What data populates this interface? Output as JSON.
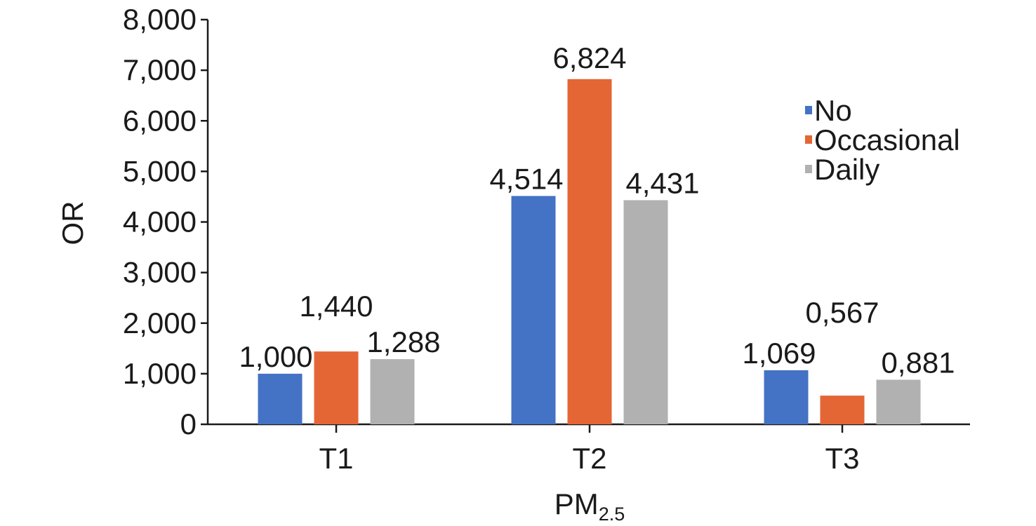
{
  "chart_data": {
    "type": "bar",
    "categories": [
      "T1",
      "T2",
      "T3"
    ],
    "series": [
      {
        "name": "No",
        "color": "#4472C4",
        "values": [
          1.0,
          4.514,
          1.069
        ],
        "labels": [
          "1,000",
          "4,514",
          "1,069"
        ]
      },
      {
        "name": "Occasional",
        "color": "#E46634",
        "values": [
          1.44,
          6.824,
          0.567
        ],
        "labels": [
          "1,440",
          "6,824",
          "0,567"
        ]
      },
      {
        "name": "Daily",
        "color": "#B1B1B1",
        "values": [
          1.288,
          4.431,
          0.881
        ],
        "labels": [
          "1,288",
          "4,431",
          "0,881"
        ]
      }
    ],
    "ylabel": "OR",
    "xlabel_main": "PM",
    "xlabel_sub": "2.5",
    "ylim": [
      0,
      8
    ],
    "yticks": [
      {
        "value": 0,
        "label": "0"
      },
      {
        "value": 1,
        "label": "1,000"
      },
      {
        "value": 2,
        "label": "2,000"
      },
      {
        "value": 3,
        "label": "3,000"
      },
      {
        "value": 4,
        "label": "4,000"
      },
      {
        "value": 5,
        "label": "5,000"
      },
      {
        "value": 6,
        "label": "6,000"
      },
      {
        "value": 7,
        "label": "7,000"
      },
      {
        "value": 8,
        "label": "8,000"
      }
    ],
    "grid": false,
    "legend_position": "top-right"
  }
}
